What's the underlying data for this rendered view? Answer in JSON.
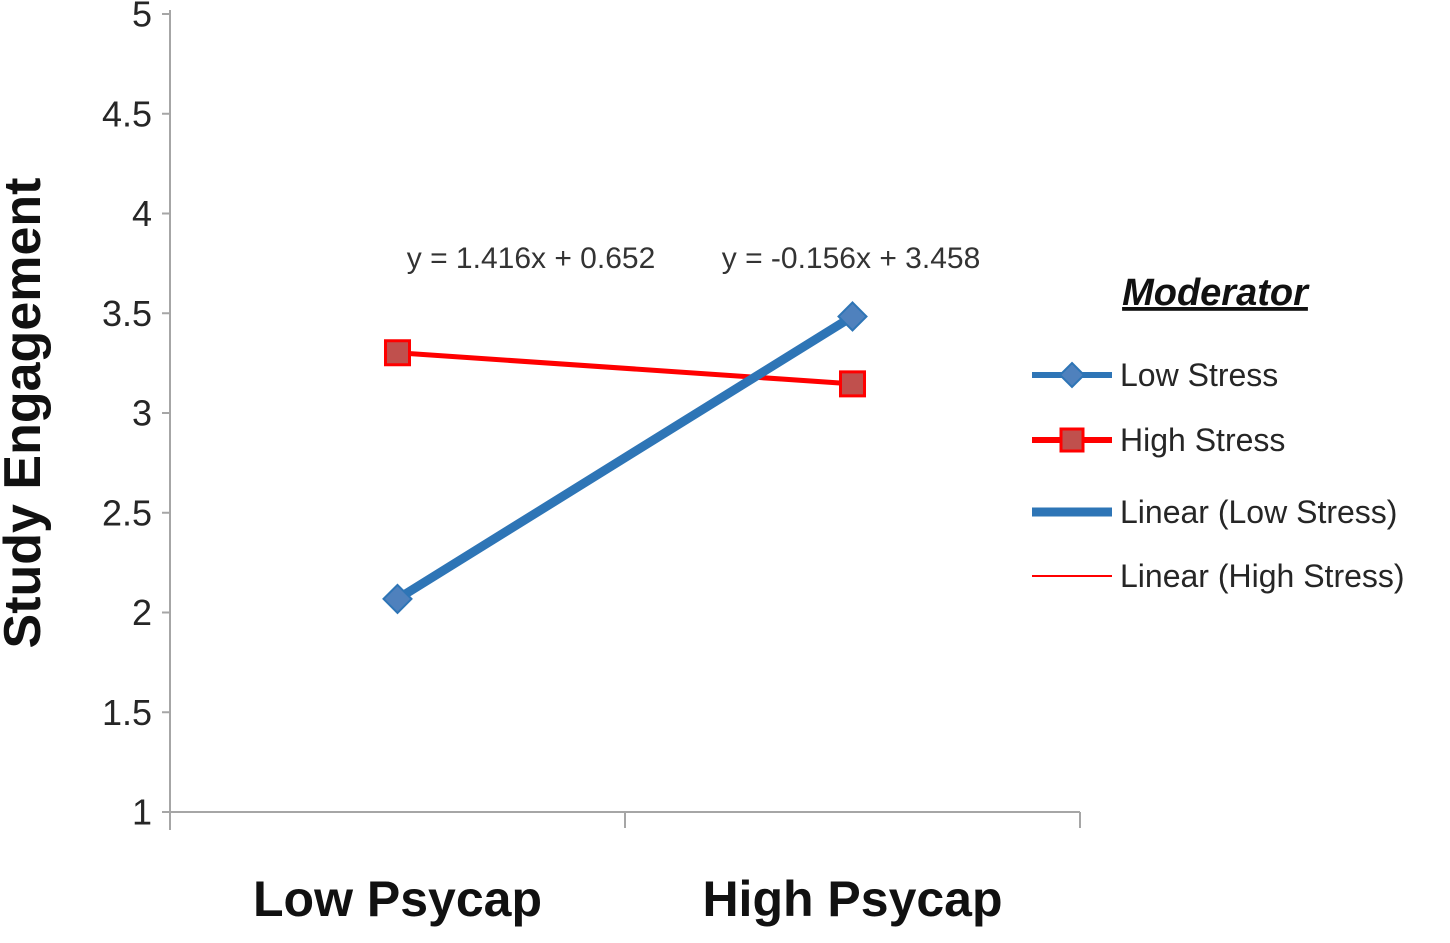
{
  "chart_data": {
    "type": "line",
    "title": "",
    "xlabel": "",
    "ylabel": "Study Engagement",
    "categories": [
      "Low Psycap",
      "High Psycap"
    ],
    "ylim": [
      1,
      5
    ],
    "y_ticks": [
      1,
      1.5,
      2,
      2.5,
      3,
      3.5,
      4,
      4.5,
      5
    ],
    "y_tick_labels": [
      "1",
      "1.5",
      "2",
      "2.5",
      "3",
      "3.5",
      "4",
      "4.5",
      "5"
    ],
    "grid": false,
    "series": [
      {
        "name": "Low Stress",
        "values": [
          2.068,
          3.484
        ],
        "line_color": "#2E75B6",
        "line_width": 9,
        "marker": "diamond",
        "marker_color": "#4F81BD",
        "marker_stroke": "#2E75B6"
      },
      {
        "name": "High Stress",
        "values": [
          3.302,
          3.146
        ],
        "line_color": "#FF0000",
        "line_width": 5,
        "marker": "square",
        "marker_color": "#C0504D",
        "marker_stroke": "#FF0000"
      }
    ],
    "trendline_equations": [
      {
        "text": "y = 1.416x + 0.652",
        "series": "Low Stress"
      },
      {
        "text": "y = -0.156x + 3.458",
        "series": "High Stress"
      }
    ],
    "legend": {
      "position": "right",
      "title": "Moderator",
      "entries": [
        {
          "label": "Low Stress",
          "line_color": "#2E75B6",
          "line_width": 6,
          "marker": "diamond",
          "marker_color": "#4F81BD",
          "marker_stroke": "#2E75B6"
        },
        {
          "label": "High Stress",
          "line_color": "#FF0000",
          "line_width": 6,
          "marker": "square",
          "marker_color": "#C0504D",
          "marker_stroke": "#FF0000"
        },
        {
          "label": "Linear (Low Stress)",
          "line_color": "#2E75B6",
          "line_width": 9,
          "marker": "none"
        },
        {
          "label": "Linear (High Stress)",
          "line_color": "#FF0000",
          "line_width": 2,
          "marker": "none"
        }
      ]
    },
    "axis_color": "#A6A6A6",
    "text_color": "#262626"
  }
}
